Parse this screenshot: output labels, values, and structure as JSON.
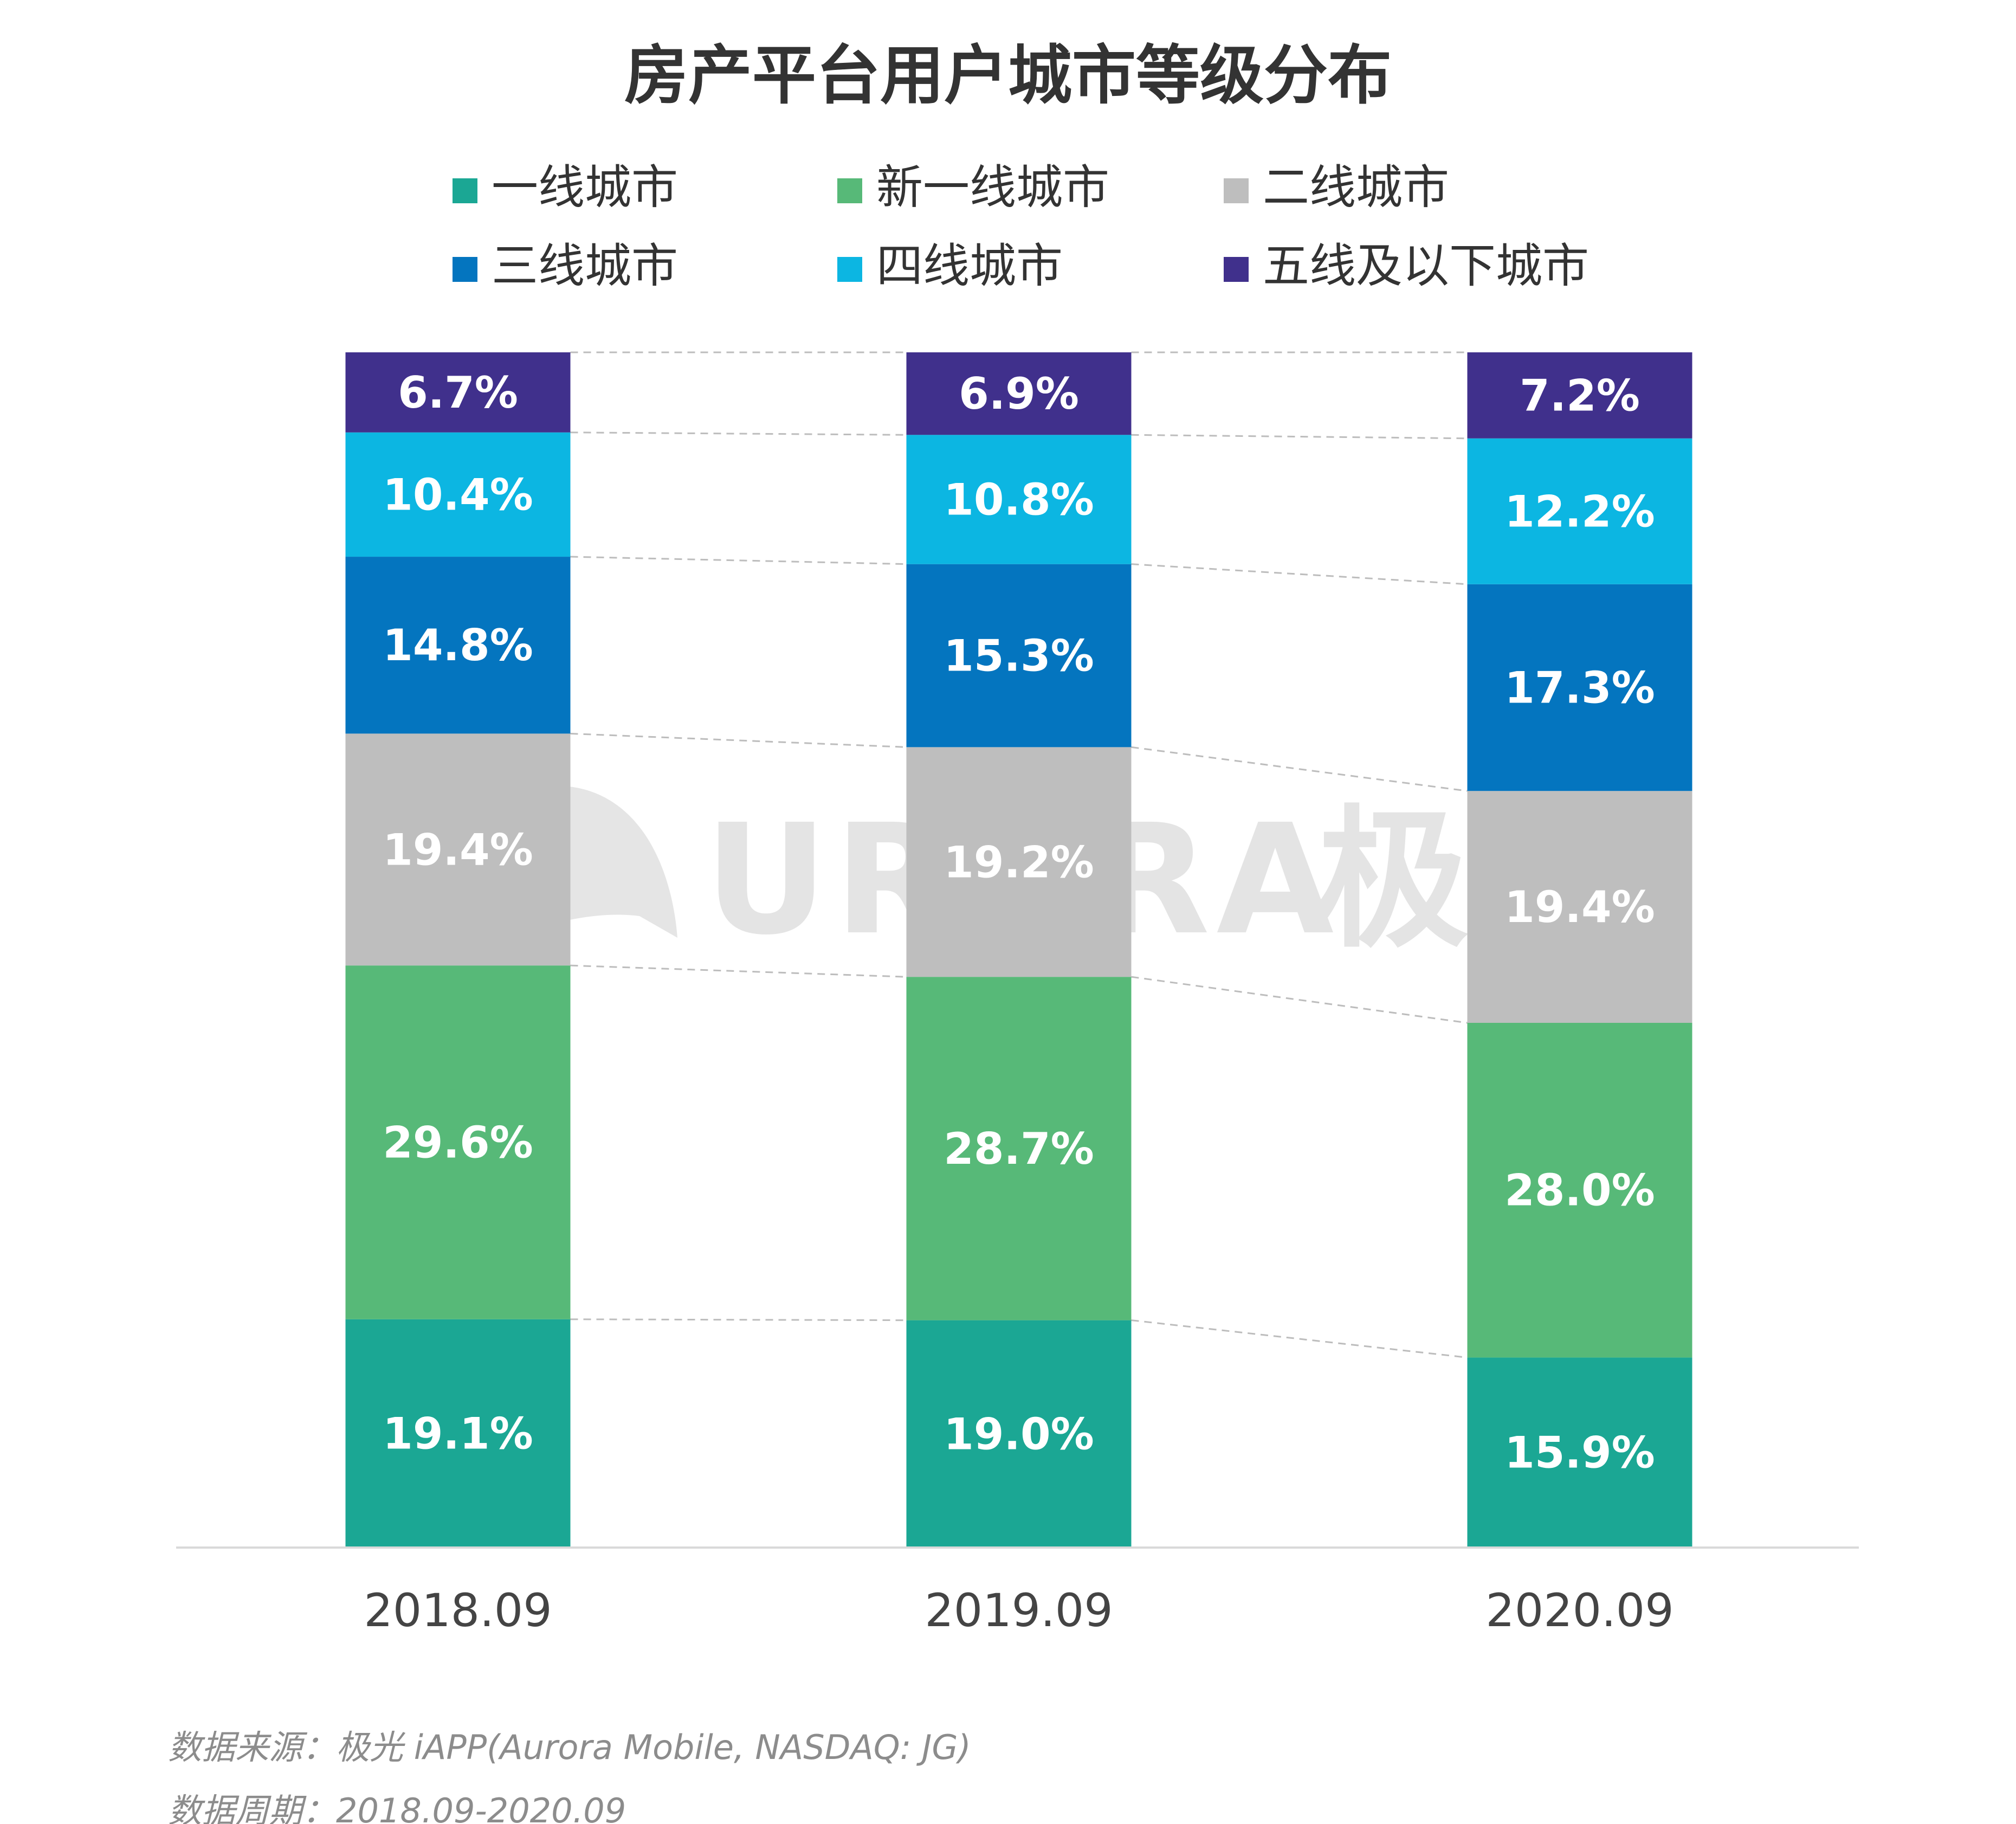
{
  "chart_data": {
    "type": "bar",
    "stacked": true,
    "title": "房产平台用户城市等级分布",
    "categories": [
      "2018.09",
      "2019.09",
      "2020.09"
    ],
    "series": [
      {
        "name": "一线城市",
        "color": "#1ba794",
        "values": [
          19.1,
          19.0,
          15.9
        ],
        "labels": [
          "19.1%",
          "19.0%",
          "15.9%"
        ]
      },
      {
        "name": "新一线城市",
        "color": "#57b978",
        "values": [
          29.6,
          28.7,
          28.0
        ],
        "labels": [
          "29.6%",
          "28.7%",
          "28.0%"
        ]
      },
      {
        "name": "二线城市",
        "color": "#bebebe",
        "values": [
          19.4,
          19.2,
          19.4
        ],
        "labels": [
          "19.4%",
          "19.2%",
          "19.4%"
        ]
      },
      {
        "name": "三线城市",
        "color": "#0475bf",
        "values": [
          14.8,
          15.3,
          17.3
        ],
        "labels": [
          "14.8%",
          "15.3%",
          "17.3%"
        ]
      },
      {
        "name": "四线城市",
        "color": "#0cb6e2",
        "values": [
          10.4,
          10.8,
          12.2
        ],
        "labels": [
          "10.4%",
          "10.8%",
          "12.2%"
        ]
      },
      {
        "name": "五线及以下城市",
        "color": "#40308c",
        "values": [
          6.7,
          6.9,
          7.2
        ],
        "labels": [
          "6.7%",
          "6.9%",
          "7.2%"
        ]
      }
    ],
    "ylim": [
      0,
      100
    ],
    "xlabel": "",
    "ylabel": "",
    "legend": "top",
    "grid": false,
    "connector_lines": true
  },
  "watermark": {
    "text": "URORA",
    "cn_text": "极光"
  },
  "footer": {
    "source": "数据来源：极光 iAPP(Aurora Mobile, NASDAQ: JG)",
    "period": "数据周期：2018.09-2020.09"
  }
}
